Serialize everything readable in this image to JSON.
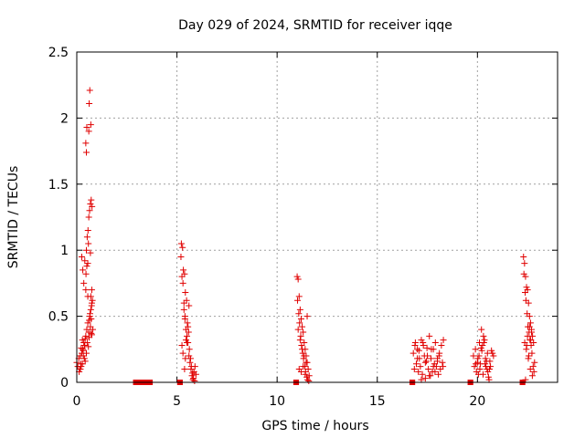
{
  "chart_data": {
    "type": "scatter",
    "title": "Day 029 of 2024, SRMTID for receiver iqqe",
    "xlabel": "GPS time / hours",
    "ylabel": "SRMTID / TECUs",
    "xlim": [
      0,
      24
    ],
    "ylim": [
      0,
      2.5
    ],
    "xticks": [
      0,
      5,
      10,
      15,
      20
    ],
    "xtick_labels": [
      "0",
      "5",
      "10",
      "15",
      "20"
    ],
    "yticks": [
      0,
      0.5,
      1,
      1.5,
      2,
      2.5
    ],
    "ytick_labels": [
      "0",
      "0.5",
      "1",
      "1.5",
      "2",
      "2.5"
    ],
    "grid": true,
    "marker": "plus",
    "color": "#e00000",
    "series": [
      {
        "name": "SRMTID",
        "x": [
          0.0,
          0.05,
          0.1,
          0.15,
          0.2,
          0.25,
          0.3,
          0.35,
          0.4,
          0.45,
          0.5,
          0.55,
          0.6,
          0.65,
          0.7,
          0.75,
          0.12,
          0.18,
          0.22,
          0.28,
          0.32,
          0.38,
          0.42,
          0.48,
          0.52,
          0.58,
          0.62,
          0.68,
          0.72,
          0.55,
          0.45,
          0.35,
          0.4,
          0.3,
          0.25,
          0.48,
          0.52,
          0.56,
          0.6,
          0.64,
          0.68,
          0.72,
          0.76,
          0.5,
          0.46,
          0.7,
          0.74,
          0.78,
          0.66,
          0.62,
          0.72,
          0.75,
          0.8,
          0.48,
          0.45,
          0.5,
          0.6,
          0.62,
          0.65,
          0.7,
          0.58,
          0.68,
          0.55,
          0.75,
          0.42,
          0.38,
          0.33,
          0.28,
          0.22,
          0.18,
          5.2,
          5.25,
          5.3,
          5.35,
          5.4,
          5.45,
          5.5,
          5.55,
          5.6,
          5.65,
          5.7,
          5.75,
          5.8,
          5.85,
          5.9,
          5.95,
          5.22,
          5.28,
          5.32,
          5.38,
          5.42,
          5.48,
          5.52,
          5.58,
          5.62,
          5.68,
          5.72,
          5.78,
          5.82,
          5.88,
          5.35,
          5.4,
          5.45,
          5.3,
          5.25,
          5.55,
          5.6,
          5.5,
          5.42,
          5.38,
          11.0,
          11.05,
          11.1,
          11.15,
          11.2,
          11.25,
          11.3,
          11.35,
          11.4,
          11.45,
          11.5,
          11.55,
          11.6,
          11.02,
          11.08,
          11.12,
          11.18,
          11.22,
          11.28,
          11.32,
          11.38,
          11.42,
          11.48,
          11.52,
          11.58,
          11.05,
          11.15,
          11.25,
          11.35,
          11.45,
          11.1,
          11.2,
          11.3,
          11.4,
          11.5,
          16.8,
          16.9,
          17.0,
          17.1,
          17.2,
          17.3,
          17.4,
          17.5,
          17.6,
          17.7,
          17.8,
          17.9,
          18.0,
          18.1,
          18.2,
          18.3,
          16.85,
          16.95,
          17.05,
          17.15,
          17.25,
          17.35,
          17.45,
          17.55,
          17.65,
          17.75,
          17.85,
          17.95,
          18.05,
          18.15,
          18.25,
          16.88,
          17.08,
          17.28,
          17.48,
          17.68,
          17.88,
          18.08,
          18.28,
          17.4,
          17.6,
          17.8,
          18.0,
          17.2,
          17.0,
          19.8,
          19.9,
          20.0,
          20.1,
          20.2,
          20.3,
          20.4,
          20.5,
          20.6,
          20.7,
          20.8,
          19.85,
          19.95,
          20.05,
          20.15,
          20.25,
          20.35,
          20.45,
          20.55,
          20.65,
          20.75,
          20.02,
          20.12,
          20.22,
          20.32,
          20.42,
          20.52,
          20.62,
          19.92,
          20.08,
          20.18,
          20.28,
          20.38,
          20.48,
          20.58,
          22.3,
          22.35,
          22.4,
          22.45,
          22.5,
          22.55,
          22.6,
          22.65,
          22.7,
          22.75,
          22.8,
          22.85,
          22.32,
          22.38,
          22.42,
          22.48,
          22.52,
          22.58,
          22.62,
          22.68,
          22.72,
          22.78,
          22.82,
          22.36,
          22.44,
          22.54,
          22.64,
          22.74,
          22.4,
          22.5,
          22.6,
          22.7,
          22.46,
          22.56,
          22.66
        ],
        "y": [
          0.15,
          0.12,
          0.18,
          0.1,
          0.14,
          0.22,
          0.25,
          0.3,
          0.28,
          0.35,
          0.4,
          0.45,
          0.38,
          0.5,
          0.55,
          0.6,
          0.08,
          0.2,
          0.26,
          0.32,
          0.24,
          0.18,
          0.16,
          0.22,
          0.3,
          0.27,
          0.34,
          0.42,
          0.48,
          0.65,
          0.7,
          0.75,
          0.92,
          0.85,
          0.95,
          1.0,
          1.1,
          1.15,
          1.25,
          1.3,
          1.35,
          1.38,
          1.33,
          0.88,
          0.82,
          0.65,
          0.58,
          0.62,
          0.52,
          0.47,
          0.37,
          0.36,
          0.4,
          1.74,
          1.81,
          1.93,
          1.9,
          2.11,
          2.21,
          1.95,
          1.05,
          0.98,
          0.9,
          0.7,
          0.33,
          0.28,
          0.2,
          0.14,
          0.12,
          0.1,
          0.95,
          0.8,
          0.75,
          0.6,
          0.5,
          0.4,
          0.35,
          0.3,
          0.2,
          0.15,
          0.1,
          0.05,
          0.02,
          0.08,
          0.12,
          0.06,
          1.05,
          1.02,
          0.85,
          0.82,
          0.68,
          0.62,
          0.45,
          0.38,
          0.25,
          0.18,
          0.12,
          0.07,
          0.03,
          0.01,
          0.55,
          0.48,
          0.32,
          0.22,
          0.28,
          0.42,
          0.58,
          0.3,
          0.18,
          0.1,
          0.8,
          0.78,
          0.65,
          0.55,
          0.48,
          0.42,
          0.38,
          0.3,
          0.25,
          0.2,
          0.15,
          0.1,
          0.05,
          0.62,
          0.52,
          0.45,
          0.35,
          0.28,
          0.22,
          0.18,
          0.12,
          0.08,
          0.04,
          0.02,
          0.01,
          0.4,
          0.32,
          0.25,
          0.2,
          0.15,
          0.1,
          0.08,
          0.12,
          0.06,
          0.5,
          0.22,
          0.3,
          0.25,
          0.18,
          0.32,
          0.28,
          0.15,
          0.2,
          0.35,
          0.25,
          0.12,
          0.3,
          0.18,
          0.22,
          0.28,
          0.32,
          0.1,
          0.14,
          0.08,
          0.12,
          0.06,
          0.2,
          0.16,
          0.1,
          0.05,
          0.08,
          0.14,
          0.12,
          0.06,
          0.1,
          0.15,
          0.28,
          0.24,
          0.3,
          0.26,
          0.18,
          0.08,
          0.2,
          0.12,
          0.03,
          0.05,
          0.25,
          0.16,
          0.02,
          0.18,
          0.2,
          0.25,
          0.15,
          0.3,
          0.4,
          0.35,
          0.18,
          0.22,
          0.1,
          0.24,
          0.2,
          0.12,
          0.08,
          0.06,
          0.14,
          0.28,
          0.32,
          0.16,
          0.04,
          0.12,
          0.22,
          0.18,
          0.1,
          0.24,
          0.3,
          0.12,
          0.08,
          0.16,
          0.14,
          0.2,
          0.26,
          0.06,
          0.14,
          0.1,
          0.02,
          0.95,
          0.9,
          0.8,
          0.72,
          0.7,
          0.6,
          0.5,
          0.45,
          0.4,
          0.35,
          0.3,
          0.15,
          0.82,
          0.68,
          0.62,
          0.52,
          0.42,
          0.38,
          0.32,
          0.28,
          0.22,
          0.12,
          0.08,
          0.3,
          0.25,
          0.18,
          0.1,
          0.05,
          0.02,
          0.35,
          0.42,
          0.38,
          0.28,
          0.2,
          0.32
        ]
      }
    ],
    "zero_segments": [
      {
        "x_start": 2.9,
        "x_end": 3.7,
        "y": 0
      },
      {
        "x_start": 5.1,
        "x_end": 5.2,
        "y": 0
      },
      {
        "x_start": 10.9,
        "x_end": 11.0,
        "y": 0
      },
      {
        "x_start": 16.7,
        "x_end": 16.8,
        "y": 0
      },
      {
        "x_start": 19.6,
        "x_end": 19.7,
        "y": 0
      },
      {
        "x_start": 22.2,
        "x_end": 22.3,
        "y": 0
      }
    ]
  }
}
